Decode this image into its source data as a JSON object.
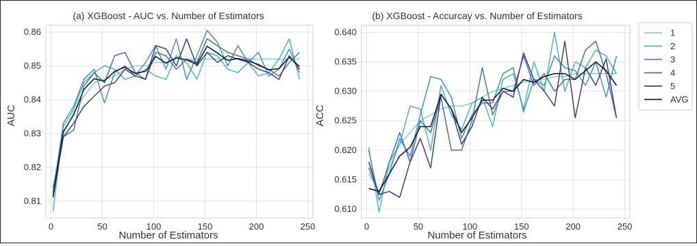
{
  "chart_data": [
    {
      "type": "line",
      "title": "(a) XGBoost - AUC vs. Number of Estimators",
      "xlabel": "Number of Estimators",
      "ylabel": "AUC",
      "xlim": [
        -5,
        255
      ],
      "ylim": [
        0.805,
        0.862
      ],
      "xticks": [
        0,
        50,
        100,
        150,
        200,
        250
      ],
      "yticks": [
        0.81,
        0.82,
        0.83,
        0.84,
        0.85,
        0.86
      ],
      "ytick_labels": [
        "0.81",
        "0.82",
        "0.83",
        "0.84",
        "0.85",
        "0.86"
      ],
      "grid": true,
      "x": [
        2,
        12,
        22,
        32,
        42,
        52,
        62,
        72,
        82,
        92,
        102,
        112,
        122,
        132,
        142,
        152,
        162,
        172,
        182,
        192,
        202,
        212,
        222,
        232,
        242
      ],
      "series": [
        {
          "name": "1",
          "color": "#7fd3c4",
          "values": [
            0.8135,
            0.83,
            0.836,
            0.841,
            0.845,
            0.846,
            0.847,
            0.849,
            0.85,
            0.85,
            0.851,
            0.851,
            0.852,
            0.852,
            0.852,
            0.852,
            0.852,
            0.852,
            0.852,
            0.852,
            0.852,
            0.852,
            0.852,
            0.852,
            0.852
          ]
        },
        {
          "name": "2",
          "color": "#4ab8b4",
          "values": [
            0.807,
            0.832,
            0.837,
            0.845,
            0.848,
            0.85,
            0.849,
            0.846,
            0.847,
            0.849,
            0.847,
            0.846,
            0.853,
            0.851,
            0.846,
            0.854,
            0.853,
            0.849,
            0.848,
            0.851,
            0.847,
            0.848,
            0.852,
            0.858,
            0.846
          ]
        },
        {
          "name": "3",
          "color": "#3d95b8",
          "values": [
            0.8125,
            0.833,
            0.838,
            0.846,
            0.849,
            0.839,
            0.848,
            0.85,
            0.847,
            0.851,
            0.856,
            0.849,
            0.858,
            0.846,
            0.853,
            0.8605,
            0.857,
            0.85,
            0.856,
            0.851,
            0.854,
            0.847,
            0.849,
            0.855,
            0.848
          ]
        },
        {
          "name": "4",
          "color": "#4a6fae",
          "values": [
            0.814,
            0.829,
            0.831,
            0.844,
            0.848,
            0.845,
            0.853,
            0.854,
            0.848,
            0.846,
            0.854,
            0.853,
            0.849,
            0.852,
            0.851,
            0.858,
            0.856,
            0.854,
            0.853,
            0.852,
            0.85,
            0.849,
            0.847,
            0.851,
            0.854
          ]
        },
        {
          "name": "5",
          "color": "#4a3a7a",
          "values": [
            0.811,
            0.829,
            0.833,
            0.838,
            0.841,
            0.844,
            0.845,
            0.849,
            0.847,
            0.846,
            0.856,
            0.855,
            0.85,
            0.858,
            0.85,
            0.854,
            0.851,
            0.853,
            0.852,
            0.851,
            0.849,
            0.848,
            0.846,
            0.853,
            0.849
          ]
        },
        {
          "name": "AVG",
          "color": "#1b1b2f",
          "values": [
            0.8115,
            0.8305,
            0.8355,
            0.843,
            0.8462,
            0.8455,
            0.8484,
            0.8496,
            0.8478,
            0.8484,
            0.8528,
            0.8508,
            0.8524,
            0.8518,
            0.8504,
            0.8558,
            0.8538,
            0.8516,
            0.8522,
            0.8514,
            0.8504,
            0.8488,
            0.8492,
            0.8526,
            0.8498
          ]
        }
      ]
    },
    {
      "type": "line",
      "title": "(b) XGBoost - Accurcay vs. Number of Estimators",
      "xlabel": "Number of Estimators",
      "ylabel": "ACC",
      "xlim": [
        -5,
        255
      ],
      "ylim": [
        0.6085,
        0.6412
      ],
      "xticks": [
        0,
        50,
        100,
        150,
        200,
        250
      ],
      "yticks": [
        0.61,
        0.615,
        0.62,
        0.625,
        0.63,
        0.635,
        0.64
      ],
      "ytick_labels": [
        "0.610",
        "0.615",
        "0.620",
        "0.625",
        "0.630",
        "0.635",
        "0.640"
      ],
      "grid": true,
      "x": [
        2,
        12,
        22,
        32,
        42,
        52,
        62,
        72,
        82,
        92,
        102,
        112,
        122,
        132,
        142,
        152,
        162,
        172,
        182,
        192,
        202,
        212,
        222,
        232,
        242
      ],
      "series": [
        {
          "name": "1",
          "color": "#7fd3c4",
          "values": [
            0.616,
            0.613,
            0.617,
            0.621,
            0.623,
            0.625,
            0.626,
            0.627,
            0.6275,
            0.6275,
            0.628,
            0.629,
            0.63,
            0.6305,
            0.631,
            0.6315,
            0.632,
            0.632,
            0.6325,
            0.6325,
            0.633,
            0.633,
            0.633,
            0.633,
            0.633
          ]
        },
        {
          "name": "2",
          "color": "#4ab8b4",
          "values": [
            0.6205,
            0.6095,
            0.618,
            0.621,
            0.6275,
            0.627,
            0.62,
            0.631,
            0.626,
            0.6235,
            0.628,
            0.629,
            0.624,
            0.632,
            0.633,
            0.627,
            0.635,
            0.63,
            0.64,
            0.63,
            0.635,
            0.634,
            0.637,
            0.636,
            0.633
          ]
        },
        {
          "name": "3",
          "color": "#3d95b8",
          "values": [
            0.62,
            0.6115,
            0.616,
            0.622,
            0.619,
            0.626,
            0.6325,
            0.632,
            0.629,
            0.622,
            0.626,
            0.628,
            0.628,
            0.633,
            0.634,
            0.6265,
            0.632,
            0.631,
            0.636,
            0.634,
            0.6335,
            0.631,
            0.635,
            0.629,
            0.636
          ]
        },
        {
          "name": "4",
          "color": "#4a6fae",
          "values": [
            0.617,
            0.6125,
            0.618,
            0.623,
            0.618,
            0.625,
            0.623,
            0.629,
            0.62,
            0.62,
            0.625,
            0.634,
            0.626,
            0.63,
            0.63,
            0.636,
            0.631,
            0.633,
            0.63,
            0.632,
            0.632,
            0.637,
            0.6385,
            0.633,
            0.6255
          ]
        },
        {
          "name": "5",
          "color": "#4a3a7a",
          "values": [
            0.618,
            0.6125,
            0.613,
            0.612,
            0.618,
            0.622,
            0.617,
            0.6295,
            0.627,
            0.621,
            0.624,
            0.629,
            0.627,
            0.63,
            0.629,
            0.6365,
            0.632,
            0.63,
            0.6275,
            0.6385,
            0.6255,
            0.634,
            0.631,
            0.6355,
            0.6255
          ]
        },
        {
          "name": "AVG",
          "color": "#1b1b2f",
          "values": [
            0.6135,
            0.613,
            0.616,
            0.619,
            0.6205,
            0.624,
            0.624,
            0.6295,
            0.627,
            0.623,
            0.6255,
            0.6285,
            0.6285,
            0.6305,
            0.63,
            0.632,
            0.6315,
            0.6325,
            0.633,
            0.633,
            0.632,
            0.6335,
            0.635,
            0.6335,
            0.631
          ]
        }
      ]
    }
  ],
  "legend": {
    "placement": "outside-right",
    "entries": [
      {
        "label": "1",
        "color": "#7fd3c4"
      },
      {
        "label": "2",
        "color": "#4ab8b4"
      },
      {
        "label": "3",
        "color": "#3d95b8"
      },
      {
        "label": "4",
        "color": "#4a6fae"
      },
      {
        "label": "5",
        "color": "#4a3a7a"
      },
      {
        "label": "AVG",
        "color": "#1b1b2f"
      }
    ]
  }
}
